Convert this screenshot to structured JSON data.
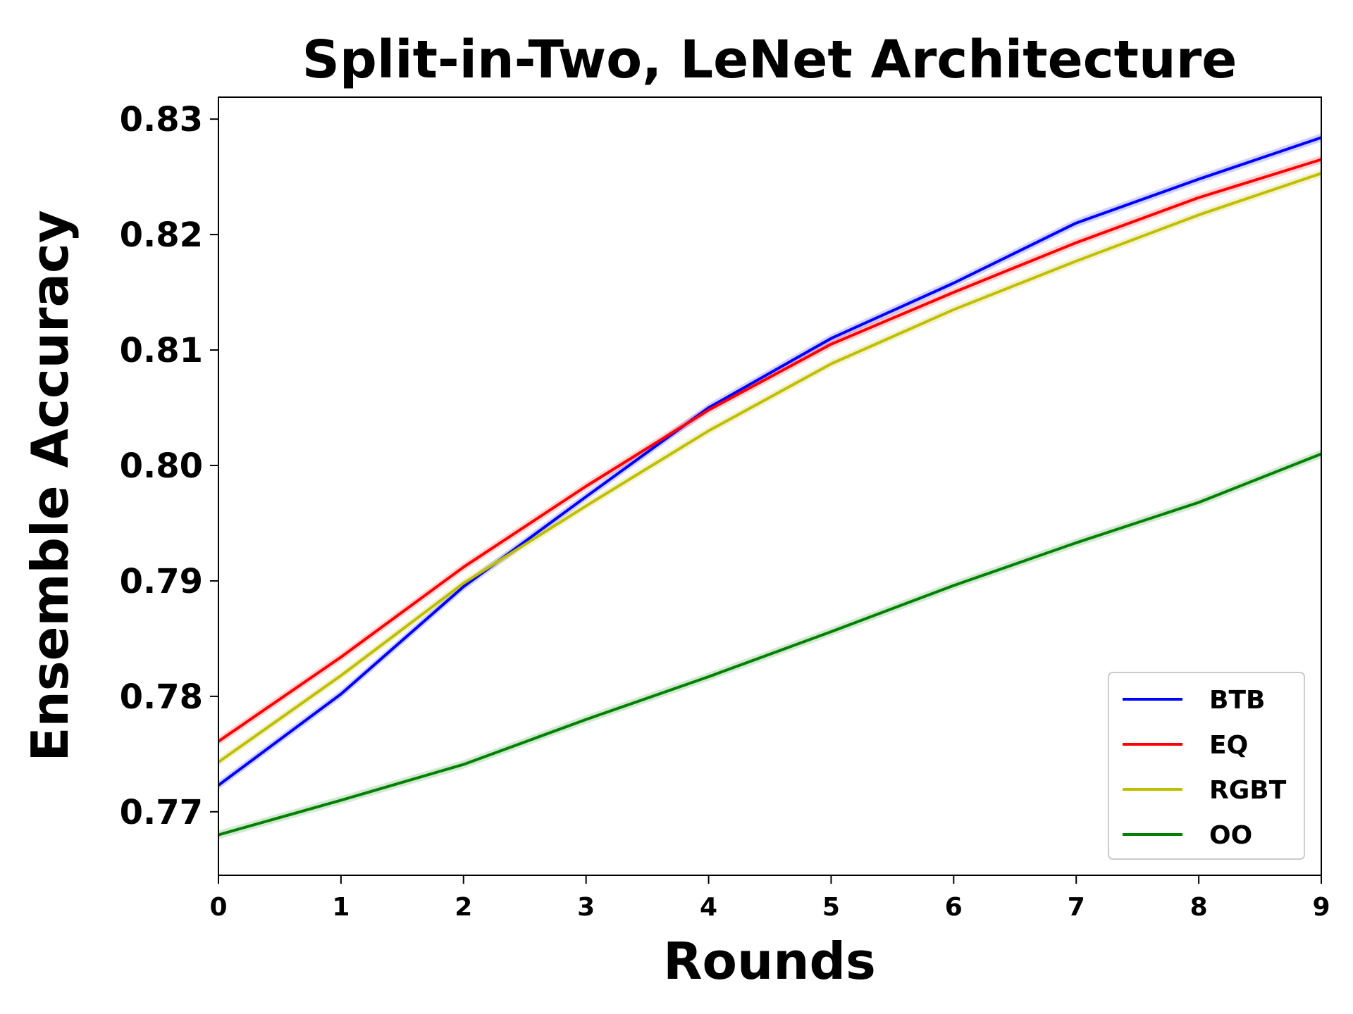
{
  "chart_data": {
    "type": "line",
    "title": "Split-in-Two, LeNet Architecture",
    "xlabel": "Rounds",
    "ylabel": "Ensemble Accuracy",
    "x": [
      0,
      1,
      2,
      3,
      4,
      5,
      6,
      7,
      8,
      9
    ],
    "xticks": [
      "0",
      "1",
      "2",
      "3",
      "4",
      "5",
      "6",
      "7",
      "8",
      "9"
    ],
    "yticks": [
      "0.77",
      "0.78",
      "0.79",
      "0.80",
      "0.81",
      "0.82",
      "0.83"
    ],
    "ytick_values": [
      0.77,
      0.78,
      0.79,
      0.8,
      0.81,
      0.82,
      0.83
    ],
    "xlim": [
      0,
      9
    ],
    "ylim": [
      0.7645,
      0.8319
    ],
    "grid": false,
    "legend_position": "lower-right",
    "series": [
      {
        "name": "BTB",
        "color": "#0000ff",
        "values": [
          0.7723,
          0.7802,
          0.7895,
          0.7973,
          0.805,
          0.811,
          0.8158,
          0.821,
          0.8248,
          0.8284
        ]
      },
      {
        "name": "EQ",
        "color": "#ff0000",
        "values": [
          0.7761,
          0.7834,
          0.7912,
          0.7982,
          0.8048,
          0.8105,
          0.815,
          0.8193,
          0.8232,
          0.8265
        ]
      },
      {
        "name": "RGBT",
        "color": "#bfbf00",
        "values": [
          0.7743,
          0.7818,
          0.7898,
          0.7965,
          0.803,
          0.8088,
          0.8135,
          0.8177,
          0.8217,
          0.8253
        ]
      },
      {
        "name": "OO",
        "color": "#008000",
        "values": [
          0.768,
          0.771,
          0.7741,
          0.778,
          0.7817,
          0.7856,
          0.7896,
          0.7933,
          0.7968,
          0.801
        ]
      }
    ]
  }
}
